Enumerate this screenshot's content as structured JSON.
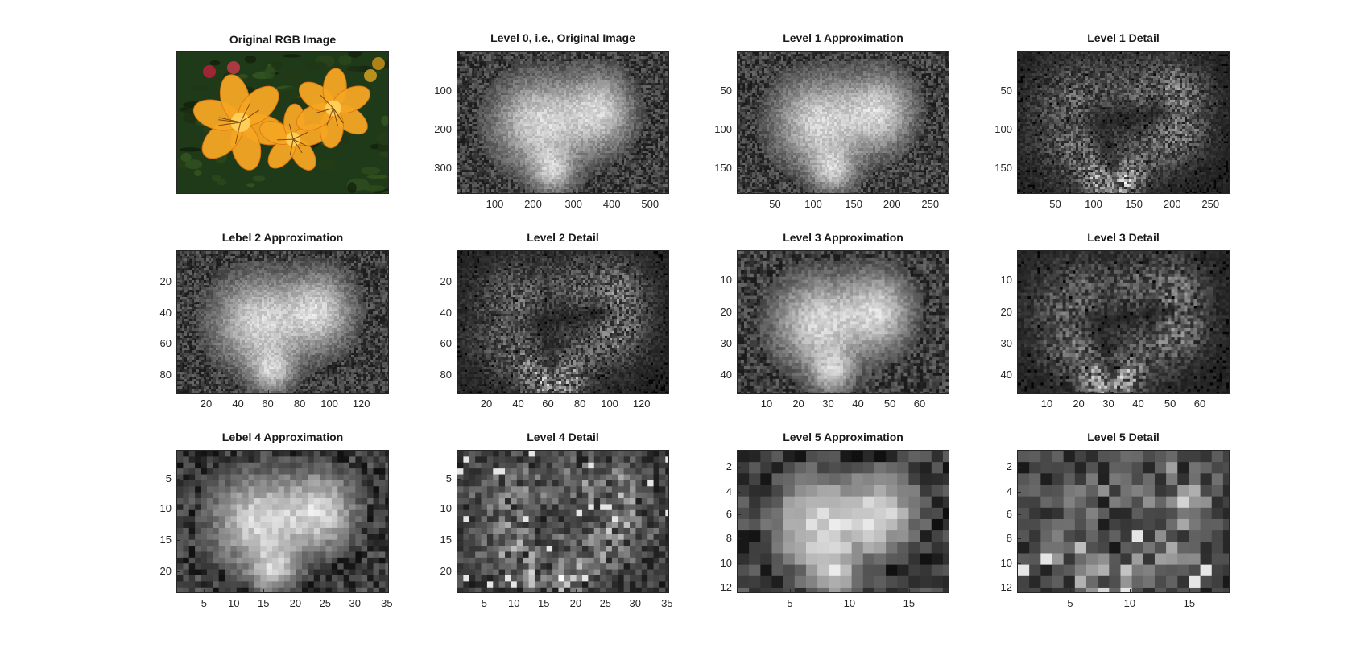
{
  "figure": {
    "panels": [
      {
        "id": "rgb",
        "title": "Original RGB Image",
        "kind": "rgb",
        "x_ticks": [],
        "y_ticks": []
      },
      {
        "id": "l0",
        "title": "Level 0, i.e., Original Image",
        "kind": "approx",
        "x_ticks": [
          "100",
          "200",
          "300",
          "400",
          "500"
        ],
        "y_ticks": [
          "100",
          "200",
          "300"
        ]
      },
      {
        "id": "l1a",
        "title": "Level 1 Approximation",
        "kind": "approx",
        "x_ticks": [
          "50",
          "100",
          "150",
          "200",
          "250"
        ],
        "y_ticks": [
          "50",
          "100",
          "150"
        ]
      },
      {
        "id": "l1d",
        "title": "Level 1 Detail",
        "kind": "detail",
        "x_ticks": [
          "50",
          "100",
          "150",
          "200",
          "250"
        ],
        "y_ticks": [
          "50",
          "100",
          "150"
        ]
      },
      {
        "id": "l2a",
        "title": "Lebel 2 Approximation",
        "kind": "approx",
        "x_ticks": [
          "20",
          "40",
          "60",
          "80",
          "100",
          "120"
        ],
        "y_ticks": [
          "20",
          "40",
          "60",
          "80"
        ]
      },
      {
        "id": "l2d",
        "title": "Level 2 Detail",
        "kind": "detail",
        "x_ticks": [
          "20",
          "40",
          "60",
          "80",
          "100",
          "120"
        ],
        "y_ticks": [
          "20",
          "40",
          "60",
          "80"
        ]
      },
      {
        "id": "l3a",
        "title": "Level 3 Approximation",
        "kind": "approx-blocky",
        "x_ticks": [
          "10",
          "20",
          "30",
          "40",
          "50",
          "60"
        ],
        "y_ticks": [
          "10",
          "20",
          "30",
          "40"
        ]
      },
      {
        "id": "l3d",
        "title": "Level 3 Detail",
        "kind": "detail-blocky",
        "x_ticks": [
          "10",
          "20",
          "30",
          "40",
          "50",
          "60"
        ],
        "y_ticks": [
          "10",
          "20",
          "30",
          "40"
        ]
      },
      {
        "id": "l4a",
        "title": "Lebel 4 Approximation",
        "kind": "approx-pixel",
        "x_ticks": [
          "5",
          "10",
          "15",
          "20",
          "25",
          "30",
          "35"
        ],
        "y_ticks": [
          "5",
          "10",
          "15",
          "20"
        ]
      },
      {
        "id": "l4d",
        "title": "Level 4 Detail",
        "kind": "detail-pixel",
        "x_ticks": [
          "5",
          "10",
          "15",
          "20",
          "25",
          "30",
          "35"
        ],
        "y_ticks": [
          "5",
          "10",
          "15",
          "20"
        ]
      },
      {
        "id": "l5a",
        "title": "Level 5 Approximation",
        "kind": "approx-pixel5",
        "x_ticks": [
          "5",
          "10",
          "15"
        ],
        "y_ticks": [
          "2",
          "4",
          "6",
          "8",
          "10",
          "12"
        ]
      },
      {
        "id": "l5d",
        "title": "Level 5 Detail",
        "kind": "detail-pixel5",
        "x_ticks": [
          "5",
          "10",
          "15"
        ],
        "y_ticks": [
          "2",
          "4",
          "6",
          "8",
          "10",
          "12"
        ]
      }
    ]
  },
  "colors": {
    "axis": "#262626",
    "petal": "#f5a623",
    "foliage": "#1f3a18"
  }
}
